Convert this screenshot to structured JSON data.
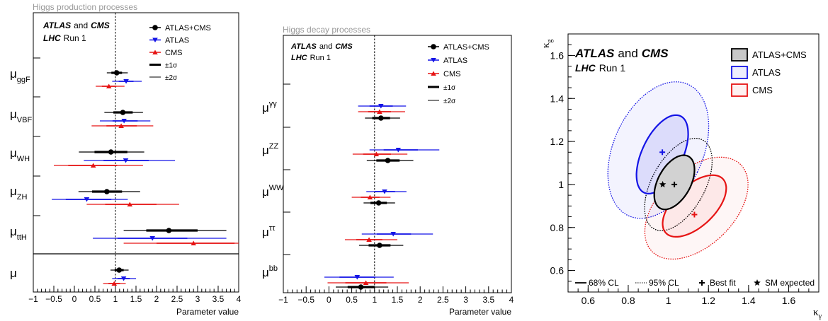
{
  "colors": {
    "combined": "#000000",
    "atlas": "#1414e6",
    "cms": "#e61414",
    "sm_line": "#000000"
  },
  "legend_texts": {
    "combined": "ATLAS+CMS",
    "atlas": "ATLAS",
    "cms": "CMS",
    "s1": "±1σ",
    "s2": "±2σ"
  },
  "experiment_label": {
    "atlas": "ATLAS",
    "and": "and",
    "cms": "CMS",
    "lhc": "LHC",
    "run": "Run 1"
  },
  "chart_data": [
    {
      "type": "scatter",
      "title": "Higgs production processes",
      "xlabel": "Parameter value",
      "xlim": [
        -1,
        4
      ],
      "xticks": [
        "−1",
        "−0.5",
        "0",
        "0.5",
        "1",
        "1.5",
        "2",
        "2.5",
        "3",
        "3.5",
        "4"
      ],
      "sm_reference": 1,
      "rows": [
        {
          "base": "μ",
          "sub": "ggF",
          "entries": [
            {
              "series": "ATLAS+CMS",
              "value": 1.03,
              "s1": [
                0.9,
                1.16
              ],
              "s2": [
                0.79,
                1.3
              ]
            },
            {
              "series": "ATLAS",
              "value": 1.26,
              "s1": [
                1.08,
                1.44
              ],
              "s2": [
                0.92,
                1.64
              ]
            },
            {
              "series": "CMS",
              "value": 0.84,
              "s1": [
                0.67,
                1.02
              ],
              "s2": [
                0.52,
                1.22
              ]
            }
          ]
        },
        {
          "base": "μ",
          "sub": "VBF",
          "entries": [
            {
              "series": "ATLAS+CMS",
              "value": 1.18,
              "s1": [
                0.95,
                1.42
              ],
              "s2": [
                0.73,
                1.67
              ]
            },
            {
              "series": "ATLAS",
              "value": 1.21,
              "s1": [
                0.93,
                1.54
              ],
              "s2": [
                0.62,
                1.85
              ]
            },
            {
              "series": "CMS",
              "value": 1.14,
              "s1": [
                0.78,
                1.52
              ],
              "s2": [
                0.42,
                1.92
              ]
            }
          ]
        },
        {
          "base": "μ",
          "sub": "WH",
          "entries": [
            {
              "series": "ATLAS+CMS",
              "value": 0.89,
              "s1": [
                0.49,
                1.29
              ],
              "s2": [
                0.11,
                1.7
              ]
            },
            {
              "series": "ATLAS",
              "value": 1.25,
              "s1": [
                0.71,
                1.81
              ],
              "s2": [
                0.23,
                2.45
              ]
            },
            {
              "series": "CMS",
              "value": 0.46,
              "s1": [
                -0.15,
                1.04
              ],
              "s2": [
                -0.5,
                1.67
              ]
            }
          ]
        },
        {
          "base": "μ",
          "sub": "ZH",
          "entries": [
            {
              "series": "ATLAS+CMS",
              "value": 0.79,
              "s1": [
                0.43,
                1.16
              ],
              "s2": [
                0.1,
                1.6
              ]
            },
            {
              "series": "ATLAS",
              "value": 0.3,
              "s1": [
                -0.21,
                0.9
              ],
              "s2": [
                -0.55,
                1.3
              ]
            },
            {
              "series": "CMS",
              "value": 1.35,
              "s1": [
                0.75,
                2.0
              ],
              "s2": [
                0.3,
                2.55
              ]
            }
          ]
        },
        {
          "base": "μ",
          "sub": "ttH",
          "entries": [
            {
              "series": "ATLAS+CMS",
              "value": 2.3,
              "s1": [
                1.75,
                3.0
              ],
              "s2": [
                1.2,
                3.7
              ]
            },
            {
              "series": "ATLAS",
              "value": 1.9,
              "s1": [
                1.05,
                2.75
              ],
              "s2": [
                0.45,
                3.7
              ]
            },
            {
              "series": "CMS",
              "value": 2.9,
              "s1": [
                2.0,
                3.9
              ],
              "s2": [
                1.2,
                4.0
              ]
            }
          ]
        },
        {
          "base": "μ",
          "sub": "",
          "entries": [
            {
              "series": "ATLAS+CMS",
              "value": 1.09,
              "s1": [
                0.98,
                1.2
              ],
              "s2": [
                0.88,
                1.32
              ]
            },
            {
              "series": "ATLAS",
              "value": 1.2,
              "s1": [
                1.05,
                1.35
              ],
              "s2": [
                0.92,
                1.5
              ]
            },
            {
              "series": "CMS",
              "value": 0.97,
              "s1": [
                0.83,
                1.11
              ],
              "s2": [
                0.7,
                1.25
              ]
            }
          ]
        }
      ]
    },
    {
      "type": "scatter",
      "title": "Higgs decay processes",
      "xlabel": "Parameter value",
      "xlim": [
        -1,
        4
      ],
      "xticks": [
        "−1",
        "−0.5",
        "0",
        "0.5",
        "1",
        "1.5",
        "2",
        "2.5",
        "3",
        "3.5",
        "4"
      ],
      "sm_reference": 1,
      "rows": [
        {
          "base": "μ",
          "sup": "γγ",
          "entries": [
            {
              "series": "ATLAS+CMS",
              "value": 1.14,
              "s1": [
                0.95,
                1.34
              ],
              "s2": [
                0.79,
                1.56
              ]
            },
            {
              "series": "ATLAS",
              "value": 1.14,
              "s1": [
                0.89,
                1.4
              ],
              "s2": [
                0.64,
                1.69
              ]
            },
            {
              "series": "CMS",
              "value": 1.11,
              "s1": [
                0.86,
                1.36
              ],
              "s2": [
                0.64,
                1.67
              ]
            }
          ]
        },
        {
          "base": "μ",
          "sup": "ZZ",
          "entries": [
            {
              "series": "ATLAS+CMS",
              "value": 1.29,
              "s1": [
                1.04,
                1.55
              ],
              "s2": [
                0.83,
                1.85
              ]
            },
            {
              "series": "ATLAS",
              "value": 1.52,
              "s1": [
                1.2,
                1.95
              ],
              "s2": [
                0.89,
                2.42
              ]
            },
            {
              "series": "CMS",
              "value": 1.04,
              "s1": [
                0.75,
                1.36
              ],
              "s2": [
                0.52,
                1.72
              ]
            }
          ]
        },
        {
          "base": "μ",
          "sup": "WW",
          "entries": [
            {
              "series": "ATLAS+CMS",
              "value": 1.09,
              "s1": [
                0.91,
                1.27
              ],
              "s2": [
                0.76,
                1.45
              ]
            },
            {
              "series": "ATLAS",
              "value": 1.22,
              "s1": [
                1.0,
                1.45
              ],
              "s2": [
                0.82,
                1.7
              ]
            },
            {
              "series": "CMS",
              "value": 0.9,
              "s1": [
                0.7,
                1.11
              ],
              "s2": [
                0.5,
                1.35
              ]
            }
          ]
        },
        {
          "base": "μ",
          "sup": "ττ",
          "entries": [
            {
              "series": "ATLAS+CMS",
              "value": 1.11,
              "s1": [
                0.87,
                1.35
              ],
              "s2": [
                0.66,
                1.63
              ]
            },
            {
              "series": "ATLAS",
              "value": 1.41,
              "s1": [
                1.05,
                1.8
              ],
              "s2": [
                0.72,
                2.28
              ]
            },
            {
              "series": "CMS",
              "value": 0.88,
              "s1": [
                0.6,
                1.17
              ],
              "s2": [
                0.35,
                1.5
              ]
            }
          ]
        },
        {
          "base": "μ",
          "sup": "bb",
          "entries": [
            {
              "series": "ATLAS+CMS",
              "value": 0.7,
              "s1": [
                0.41,
                1.0
              ],
              "s2": [
                0.15,
                1.3
              ]
            },
            {
              "series": "ATLAS",
              "value": 0.62,
              "s1": [
                0.23,
                1.02
              ],
              "s2": [
                -0.1,
                1.42
              ]
            },
            {
              "series": "CMS",
              "value": 0.81,
              "s1": [
                0.36,
                1.26
              ],
              "s2": [
                -0.03,
                1.75
              ]
            }
          ]
        }
      ]
    },
    {
      "type": "scatter",
      "title": "",
      "xlabel": "κγ",
      "ylabel": "κg",
      "xlim": [
        0.5,
        1.75
      ],
      "ylim": [
        0.5,
        1.7
      ],
      "xticks": [
        "0.6",
        "0.8",
        "1",
        "1.2",
        "1.4",
        "1.6"
      ],
      "yticks": [
        "0.6",
        "0.8",
        "1",
        "1.2",
        "1.4",
        "1.6"
      ],
      "sm_expected": {
        "x": 1.0,
        "y": 1.0
      },
      "contours": [
        {
          "series": "ATLAS",
          "level": "95% CL",
          "cx": 0.95,
          "cy": 1.16,
          "a": 0.22,
          "b": 0.34,
          "angle": -28
        },
        {
          "series": "CMS",
          "level": "95% CL",
          "cx": 1.14,
          "cy": 0.89,
          "a": 0.18,
          "b": 0.3,
          "angle": -50
        },
        {
          "series": "ATLAS+CMS",
          "level": "95% CL",
          "cx": 1.05,
          "cy": 1.0,
          "a": 0.13,
          "b": 0.24,
          "angle": -32
        },
        {
          "series": "ATLAS",
          "level": "68% CL",
          "cx": 0.97,
          "cy": 1.14,
          "a": 0.1,
          "b": 0.2,
          "angle": -28
        },
        {
          "series": "CMS",
          "level": "68% CL",
          "cx": 1.13,
          "cy": 0.9,
          "a": 0.098,
          "b": 0.19,
          "angle": -50
        },
        {
          "series": "ATLAS+CMS",
          "level": "68% CL",
          "cx": 1.03,
          "cy": 1.01,
          "a": 0.08,
          "b": 0.14,
          "angle": -32
        }
      ],
      "best_fit": [
        {
          "series": "ATLAS",
          "x": 0.97,
          "y": 1.15
        },
        {
          "series": "CMS",
          "x": 1.13,
          "y": 0.86
        },
        {
          "series": "ATLAS+CMS",
          "x": 1.03,
          "y": 1.0
        }
      ],
      "legend": {
        "entries": [
          "ATLAS+CMS",
          "ATLAS",
          "CMS"
        ],
        "placement": "top-right"
      },
      "bottom_legend": [
        "68% CL",
        "95% CL",
        "Best fit",
        "SM expected"
      ]
    }
  ]
}
